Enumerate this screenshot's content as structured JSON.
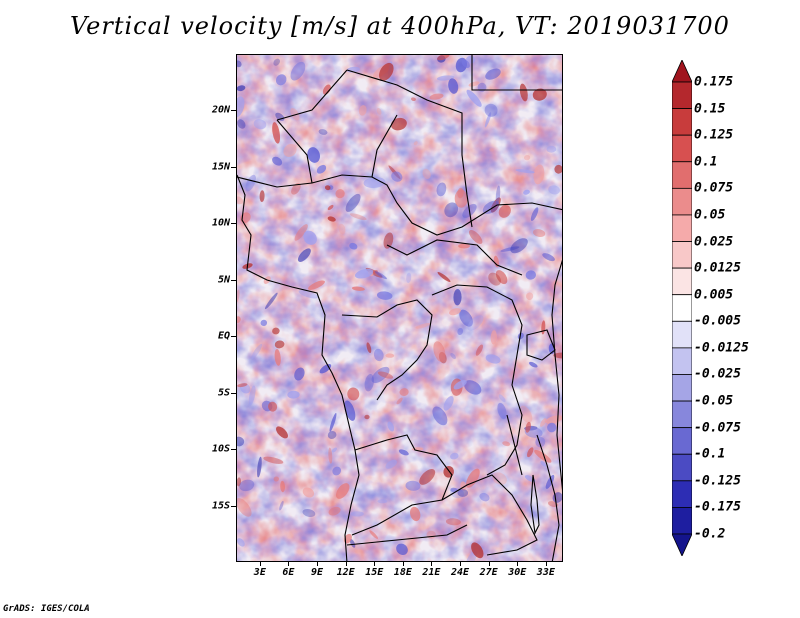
{
  "title": "Vertical velocity [m/s] at 400hPa, VT: 2019031700",
  "credit": "GrADS: IGES/COLA",
  "axes": {
    "lat_ticks": [
      {
        "label": "20N",
        "value": 20
      },
      {
        "label": "15N",
        "value": 15
      },
      {
        "label": "10N",
        "value": 10
      },
      {
        "label": "5N",
        "value": 5
      },
      {
        "label": "EQ",
        "value": 0
      },
      {
        "label": "5S",
        "value": -5
      },
      {
        "label": "10S",
        "value": -10
      },
      {
        "label": "15S",
        "value": -15
      }
    ],
    "lon_ticks": [
      {
        "label": "3E",
        "value": 3
      },
      {
        "label": "6E",
        "value": 6
      },
      {
        "label": "9E",
        "value": 9
      },
      {
        "label": "12E",
        "value": 12
      },
      {
        "label": "15E",
        "value": 15
      },
      {
        "label": "18E",
        "value": 18
      },
      {
        "label": "21E",
        "value": 21
      },
      {
        "label": "24E",
        "value": 24
      },
      {
        "label": "27E",
        "value": 27
      },
      {
        "label": "30E",
        "value": 30
      },
      {
        "label": "33E",
        "value": 33
      }
    ],
    "lon_range": [
      0.5,
      34.8
    ],
    "lat_range": [
      -20,
      25
    ]
  },
  "colorbar": {
    "labels": [
      "0.175",
      "0.15",
      "0.125",
      "0.1",
      "0.075",
      "0.05",
      "0.025",
      "0.0125",
      "0.005",
      "-0.005",
      "-0.0125",
      "-0.025",
      "-0.05",
      "-0.075",
      "-0.1",
      "-0.125",
      "-0.175",
      "-0.2"
    ],
    "colors": [
      "#a0141e",
      "#b4282d",
      "#c83c3c",
      "#d75050",
      "#e16e6e",
      "#eb8c8c",
      "#f5aaaa",
      "#f8c8c8",
      "#fbe4e4",
      "#ffffff",
      "#e1e1f8",
      "#c3c3f0",
      "#a5a5e6",
      "#8787dc",
      "#6969d2",
      "#4b4bc3",
      "#2d2db4",
      "#1e1ea0",
      "#14148c"
    ]
  },
  "chart_data": {
    "type": "heatmap",
    "title": "Vertical velocity [m/s] at 400hPa, VT: 2019031700",
    "variable": "Vertical velocity",
    "units": "m/s",
    "level": "400hPa",
    "valid_time": "2019031700",
    "x_ticks": [
      "3E",
      "6E",
      "9E",
      "12E",
      "15E",
      "18E",
      "21E",
      "24E",
      "27E",
      "30E",
      "33E"
    ],
    "y_ticks": [
      "20N",
      "15N",
      "10N",
      "5N",
      "EQ",
      "5S",
      "10S",
      "15S"
    ],
    "xlim": [
      0.5,
      34.8
    ],
    "ylim": [
      -20,
      25
    ],
    "color_levels": [
      -0.2,
      -0.175,
      -0.125,
      -0.1,
      -0.075,
      -0.05,
      -0.025,
      -0.0125,
      -0.005,
      0.005,
      0.0125,
      0.025,
      0.05,
      0.075,
      0.1,
      0.125,
      0.15,
      0.175
    ],
    "colorbar_position": "right"
  }
}
